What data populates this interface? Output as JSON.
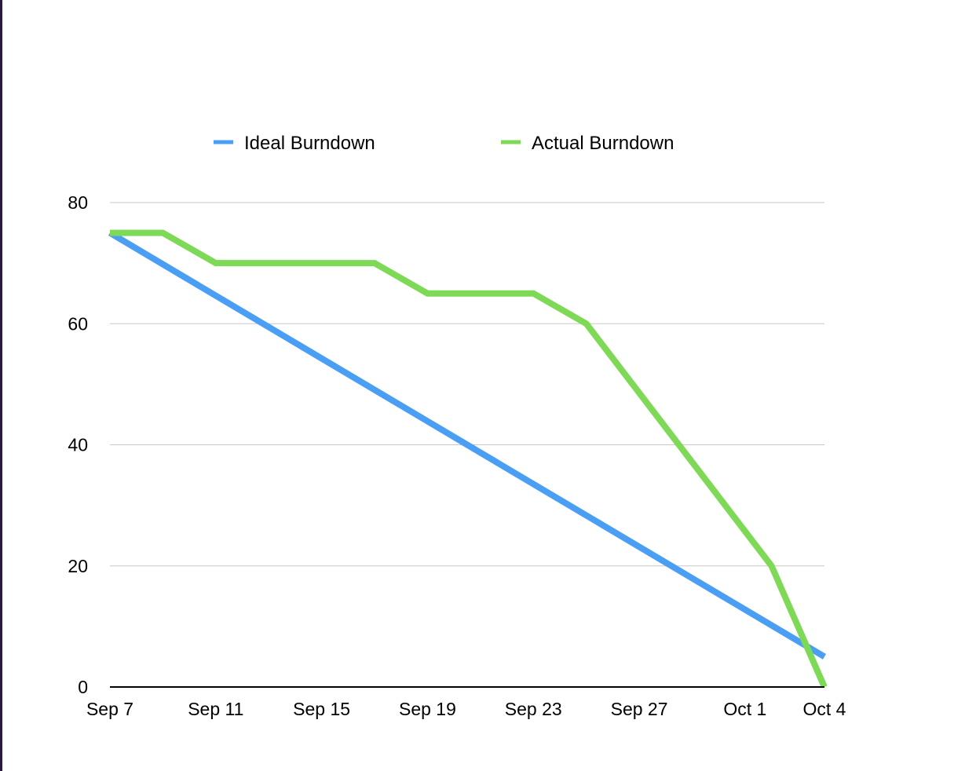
{
  "colors": {
    "edge": "#2a1a3e",
    "ideal": "#4a9ff5",
    "actual": "#7ed957",
    "grid": "#c8c8c8",
    "axis": "#000000"
  },
  "legend": {
    "items": [
      {
        "label": "Ideal Burndown",
        "color": "#4a9ff5"
      },
      {
        "label": "Actual Burndown",
        "color": "#7ed957"
      }
    ]
  },
  "chart_data": {
    "type": "line",
    "title": "",
    "xlabel": "",
    "ylabel": "",
    "ylim": [
      0,
      80
    ],
    "y_ticks": [
      0,
      20,
      40,
      60,
      80
    ],
    "x_ticks": [
      {
        "date": "2023-09-07",
        "label": "Sep 7"
      },
      {
        "date": "2023-09-11",
        "label": "Sep 11"
      },
      {
        "date": "2023-09-15",
        "label": "Sep 15"
      },
      {
        "date": "2023-09-19",
        "label": "Sep 19"
      },
      {
        "date": "2023-09-23",
        "label": "Sep 23"
      },
      {
        "date": "2023-09-27",
        "label": "Sep 27"
      },
      {
        "date": "2023-10-01",
        "label": "Oct 1"
      },
      {
        "date": "2023-10-04",
        "label": "Oct 4"
      }
    ],
    "xlim": [
      "2023-09-07",
      "2023-10-04"
    ],
    "grid": true,
    "legend_position": "top",
    "series": [
      {
        "name": "Ideal Burndown",
        "color": "#4a9ff5",
        "points": [
          {
            "x": "2023-09-07",
            "y": 75
          },
          {
            "x": "2023-10-04",
            "y": 5
          }
        ]
      },
      {
        "name": "Actual Burndown",
        "color": "#7ed957",
        "points": [
          {
            "x": "2023-09-07",
            "y": 75
          },
          {
            "x": "2023-09-09",
            "y": 75
          },
          {
            "x": "2023-09-11",
            "y": 70
          },
          {
            "x": "2023-09-17",
            "y": 70
          },
          {
            "x": "2023-09-19",
            "y": 65
          },
          {
            "x": "2023-09-23",
            "y": 65
          },
          {
            "x": "2023-09-25",
            "y": 60
          },
          {
            "x": "2023-10-02",
            "y": 20
          },
          {
            "x": "2023-10-04",
            "y": 0
          }
        ]
      }
    ]
  }
}
